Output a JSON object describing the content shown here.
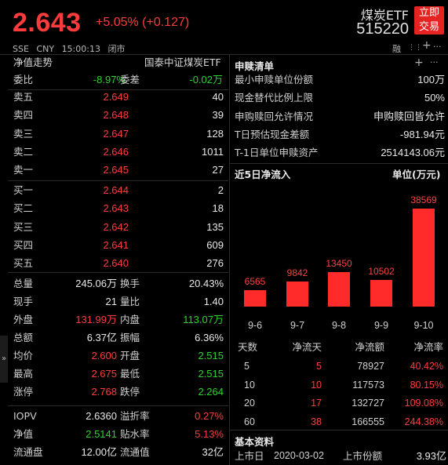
{
  "header": {
    "price": "2.643",
    "change": "+5.05% (+0.127)",
    "exchange": "SSE",
    "currency": "CNY",
    "time": "15:00:13",
    "status": "闭市",
    "name": "煤炭ETF",
    "code": "515220",
    "trade_button": "立即交易",
    "tool_icons": [
      "融",
      "⋮⋮",
      "+",
      "..."
    ]
  },
  "left": {
    "title": "净值走势",
    "fund_name": "国泰中证煤炭ETF",
    "ratio_label": "委比",
    "ratio_value": "-8.97%",
    "diff_label": "委差",
    "diff_value": "-0.02万",
    "asks": [
      {
        "label": "卖五",
        "price": "2.649",
        "volume": "40"
      },
      {
        "label": "卖四",
        "price": "2.648",
        "volume": "39"
      },
      {
        "label": "卖三",
        "price": "2.647",
        "volume": "128"
      },
      {
        "label": "卖二",
        "price": "2.646",
        "volume": "1011"
      },
      {
        "label": "卖一",
        "price": "2.645",
        "volume": "27"
      }
    ],
    "bids": [
      {
        "label": "买一",
        "price": "2.644",
        "volume": "2"
      },
      {
        "label": "买二",
        "price": "2.643",
        "volume": "18"
      },
      {
        "label": "买三",
        "price": "2.642",
        "volume": "135"
      },
      {
        "label": "买四",
        "price": "2.641",
        "volume": "609"
      },
      {
        "label": "买五",
        "price": "2.640",
        "volume": "276"
      }
    ],
    "stats": [
      {
        "l1": "总量",
        "v1": "245.06万",
        "c1": "white",
        "l2": "换手",
        "v2": "20.43%",
        "c2": "white"
      },
      {
        "l1": "现手",
        "v1": "21",
        "c1": "white",
        "l2": "量比",
        "v2": "1.40",
        "c2": "white"
      },
      {
        "l1": "外盘",
        "v1": "131.99万",
        "c1": "red",
        "l2": "内盘",
        "v2": "113.07万",
        "c2": "green"
      },
      {
        "l1": "总额",
        "v1": "6.37亿",
        "c1": "white",
        "l2": "振幅",
        "v2": "6.36%",
        "c2": "white"
      },
      {
        "l1": "均价",
        "v1": "2.600",
        "c1": "red",
        "l2": "开盘",
        "v2": "2.515",
        "c2": "green"
      },
      {
        "l1": "最高",
        "v1": "2.675",
        "c1": "red",
        "l2": "最低",
        "v2": "2.515",
        "c2": "green"
      },
      {
        "l1": "涨停",
        "v1": "2.768",
        "c1": "red",
        "l2": "跌停",
        "v2": "2.264",
        "c2": "green"
      }
    ],
    "iopv": [
      {
        "l1": "IOPV",
        "v1": "2.6360",
        "c1": "white",
        "l2": "溢折率",
        "v2": "0.27%",
        "c2": "red"
      },
      {
        "l1": "净值",
        "v1": "2.5141",
        "c1": "green",
        "l2": "贴水率",
        "v2": "5.13%",
        "c2": "red"
      },
      {
        "l1": "流通盘",
        "v1": "12.00亿",
        "c1": "white",
        "l2": "流通值",
        "v2": "32亿",
        "c2": "white"
      }
    ]
  },
  "right": {
    "subscription": {
      "title": "申赎清单",
      "rows": [
        {
          "label": "最小申赎单位份额",
          "value": "100万"
        },
        {
          "label": "现金替代比例上限",
          "value": "50%"
        },
        {
          "label": "申购赎回允许情况",
          "value": "申购赎回皆允许"
        },
        {
          "label": "T日预估现金差额",
          "value": "-981.94元"
        },
        {
          "label": "T-1日单位申赎资产",
          "value": "2514143.06元"
        }
      ]
    },
    "inflow": {
      "title": "近5日净流入",
      "unit": "单位(万元)",
      "chart_data": {
        "type": "bar",
        "categories": [
          "9-6",
          "9-7",
          "9-8",
          "9-9",
          "9-10"
        ],
        "values": [
          6565,
          9842,
          13450,
          10502,
          38569
        ],
        "ylim": [
          0,
          38569
        ]
      },
      "table": {
        "headers": [
          "天数",
          "净流天",
          "净流额",
          "净流率"
        ],
        "rows": [
          [
            "5",
            "5",
            "78927",
            "40.42%"
          ],
          [
            "10",
            "10",
            "117573",
            "80.15%"
          ],
          [
            "20",
            "17",
            "132727",
            "109.08%"
          ],
          [
            "60",
            "38",
            "166555",
            "244.38%"
          ]
        ]
      }
    },
    "basic": {
      "title": "基本资料",
      "listing_label": "上市日",
      "listing_value": "2020-03-02",
      "shares_label": "上市份额",
      "shares_value": "3.93亿"
    }
  },
  "colors": {
    "up": "#ff3b3b",
    "down": "#2ed12e",
    "accent": "#e62323"
  }
}
